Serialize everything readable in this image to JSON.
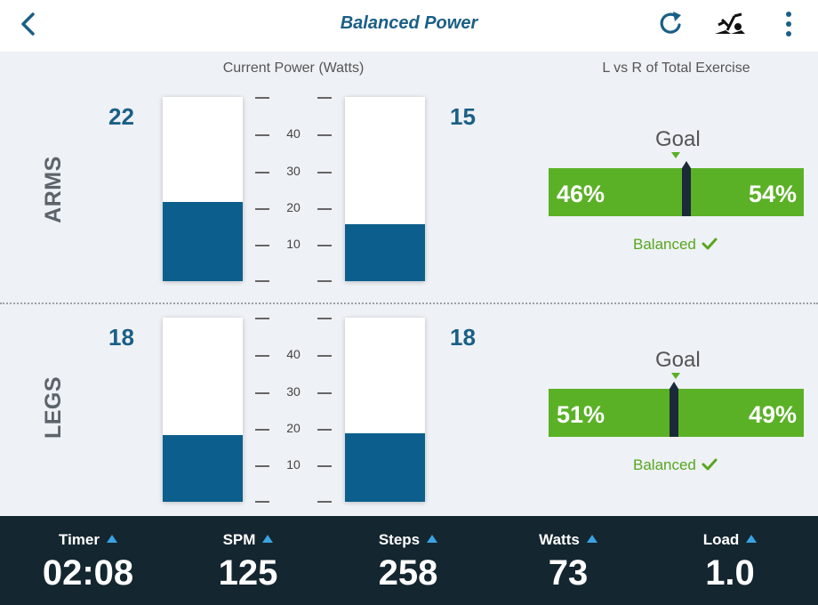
{
  "header": {
    "title": "Balanced Power",
    "back_icon": "chevron-left-icon",
    "refresh_icon": "refresh-icon",
    "machine_icon": "elliptical-machine-icon",
    "menu_icon": "more-vertical-icon"
  },
  "headings": {
    "current_power": "Current Power (Watts)",
    "lr_ratio": "L vs R of Total Exercise"
  },
  "scale": {
    "labels": [
      "40",
      "30",
      "20",
      "10"
    ]
  },
  "arms": {
    "label": "ARMS",
    "left_value": "22",
    "right_value": "15",
    "left_fill_fraction": 0.43,
    "right_fill_fraction": 0.31,
    "goal_label": "Goal",
    "left_pct": "46%",
    "right_pct": "54%",
    "marker_fraction": 0.54,
    "status": "Balanced"
  },
  "legs": {
    "label": "LEGS",
    "left_value": "18",
    "right_value": "18",
    "left_fill_fraction": 0.36,
    "right_fill_fraction": 0.37,
    "goal_label": "Goal",
    "left_pct": "51%",
    "right_pct": "49%",
    "marker_fraction": 0.49,
    "status": "Balanced"
  },
  "footer": {
    "stats": [
      {
        "label": "Timer",
        "value": "02:08"
      },
      {
        "label": "SPM",
        "value": "125"
      },
      {
        "label": "Steps",
        "value": "258"
      },
      {
        "label": "Watts",
        "value": "73"
      },
      {
        "label": "Load",
        "value": "1.0"
      }
    ]
  },
  "colors": {
    "accent_blue": "#1a5f86",
    "bar_fill": "#0c5f8c",
    "balance_green": "#5ab126",
    "footer_bg": "#14262f"
  }
}
